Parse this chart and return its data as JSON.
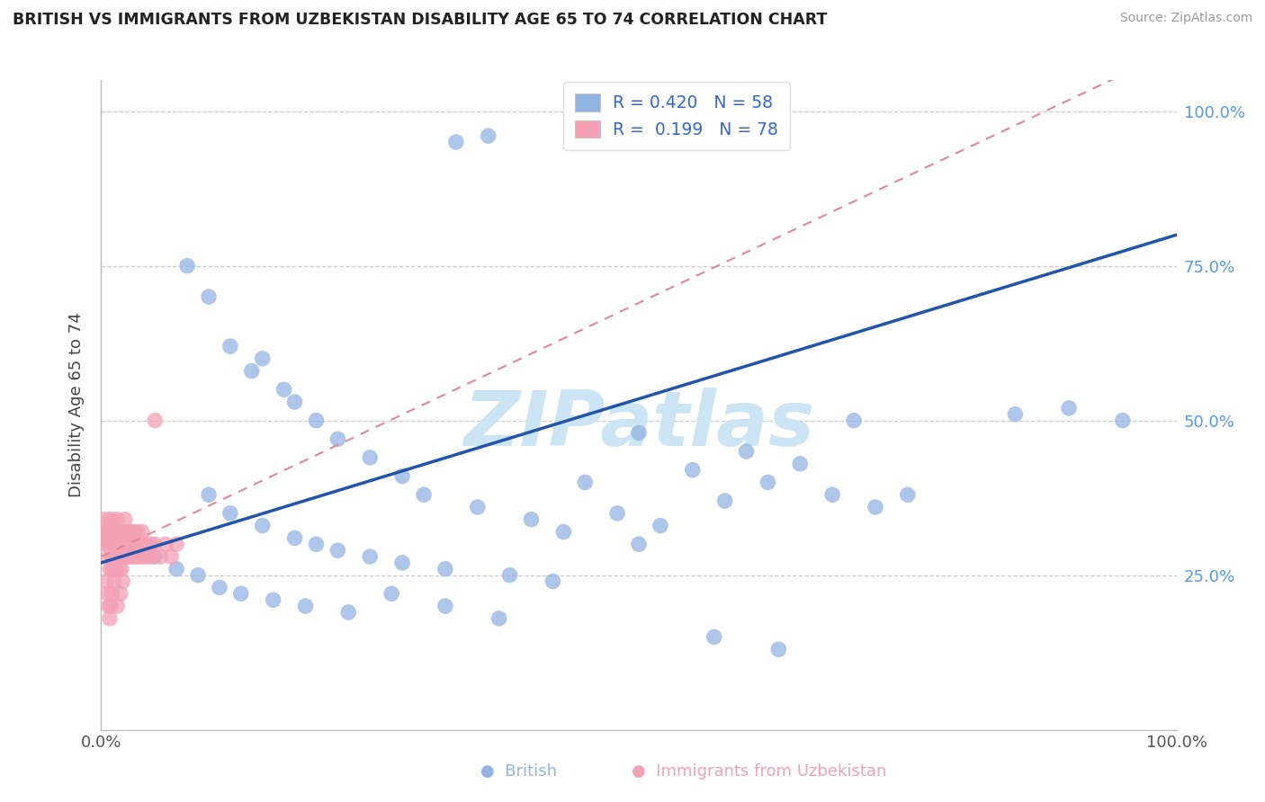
{
  "title": "BRITISH VS IMMIGRANTS FROM UZBEKISTAN DISABILITY AGE 65 TO 74 CORRELATION CHART",
  "source": "Source: ZipAtlas.com",
  "ylabel": "Disability Age 65 to 74",
  "british_R": 0.42,
  "british_N": 58,
  "uzbekistan_R": 0.199,
  "uzbekistan_N": 78,
  "british_color": "#92b4e3",
  "uzbekistan_color": "#f4a0b5",
  "regression_blue_color": "#2255aa",
  "regression_pink_color": "#e08898",
  "xlim": [
    0.0,
    1.0
  ],
  "ylim": [
    0.0,
    1.05
  ],
  "yticks": [
    0.25,
    0.5,
    0.75,
    1.0
  ],
  "ytick_labels": [
    "25.0%",
    "50.0%",
    "75.0%",
    "100.0%"
  ],
  "xtick_labels": [
    "0.0%",
    "100.0%"
  ],
  "grid_color": "#cccccc",
  "watermark_color": "#cce5f5",
  "figsize": [
    14.06,
    8.92
  ],
  "dpi": 100,
  "british_x": [
    0.33,
    0.36,
    0.08,
    0.1,
    0.15,
    0.12,
    0.17,
    0.2,
    0.14,
    0.22,
    0.25,
    0.18,
    0.28,
    0.3,
    0.35,
    0.4,
    0.45,
    0.5,
    0.55,
    0.6,
    0.65,
    0.7,
    0.75,
    0.85,
    0.9,
    0.95,
    0.1,
    0.12,
    0.15,
    0.18,
    0.2,
    0.22,
    0.25,
    0.28,
    0.32,
    0.38,
    0.42,
    0.48,
    0.52,
    0.58,
    0.62,
    0.68,
    0.72,
    0.05,
    0.07,
    0.09,
    0.11,
    0.13,
    0.16,
    0.19,
    0.23,
    0.27,
    0.32,
    0.37,
    0.43,
    0.5,
    0.57,
    0.63
  ],
  "british_y": [
    0.95,
    0.96,
    0.75,
    0.7,
    0.6,
    0.62,
    0.55,
    0.5,
    0.58,
    0.47,
    0.44,
    0.53,
    0.41,
    0.38,
    0.36,
    0.34,
    0.4,
    0.48,
    0.42,
    0.45,
    0.43,
    0.5,
    0.38,
    0.51,
    0.52,
    0.5,
    0.38,
    0.35,
    0.33,
    0.31,
    0.3,
    0.29,
    0.28,
    0.27,
    0.26,
    0.25,
    0.24,
    0.35,
    0.33,
    0.37,
    0.4,
    0.38,
    0.36,
    0.28,
    0.26,
    0.25,
    0.23,
    0.22,
    0.21,
    0.2,
    0.19,
    0.22,
    0.2,
    0.18,
    0.32,
    0.3,
    0.15,
    0.13
  ],
  "uzbekistan_x": [
    0.005,
    0.006,
    0.007,
    0.008,
    0.008,
    0.009,
    0.009,
    0.01,
    0.01,
    0.01,
    0.011,
    0.011,
    0.012,
    0.012,
    0.013,
    0.013,
    0.014,
    0.014,
    0.015,
    0.015,
    0.015,
    0.016,
    0.016,
    0.017,
    0.017,
    0.018,
    0.018,
    0.019,
    0.019,
    0.02,
    0.02,
    0.021,
    0.021,
    0.022,
    0.022,
    0.023,
    0.023,
    0.024,
    0.025,
    0.025,
    0.026,
    0.027,
    0.028,
    0.029,
    0.03,
    0.031,
    0.032,
    0.033,
    0.034,
    0.035,
    0.036,
    0.037,
    0.038,
    0.039,
    0.04,
    0.042,
    0.044,
    0.046,
    0.048,
    0.05,
    0.055,
    0.06,
    0.065,
    0.07,
    0.005,
    0.006,
    0.007,
    0.008,
    0.009,
    0.01,
    0.012,
    0.015,
    0.018,
    0.02,
    0.002,
    0.003,
    0.004,
    0.05
  ],
  "uzbekistan_y": [
    0.32,
    0.3,
    0.28,
    0.26,
    0.34,
    0.32,
    0.3,
    0.28,
    0.26,
    0.34,
    0.3,
    0.28,
    0.32,
    0.26,
    0.3,
    0.28,
    0.32,
    0.26,
    0.3,
    0.28,
    0.34,
    0.3,
    0.28,
    0.32,
    0.26,
    0.3,
    0.28,
    0.32,
    0.26,
    0.3,
    0.28,
    0.32,
    0.3,
    0.28,
    0.34,
    0.3,
    0.28,
    0.32,
    0.3,
    0.28,
    0.32,
    0.28,
    0.3,
    0.28,
    0.32,
    0.28,
    0.3,
    0.28,
    0.32,
    0.28,
    0.3,
    0.28,
    0.32,
    0.3,
    0.28,
    0.3,
    0.28,
    0.3,
    0.28,
    0.3,
    0.28,
    0.3,
    0.28,
    0.3,
    0.24,
    0.22,
    0.2,
    0.18,
    0.2,
    0.22,
    0.24,
    0.2,
    0.22,
    0.24,
    0.34,
    0.32,
    0.3,
    0.5
  ]
}
